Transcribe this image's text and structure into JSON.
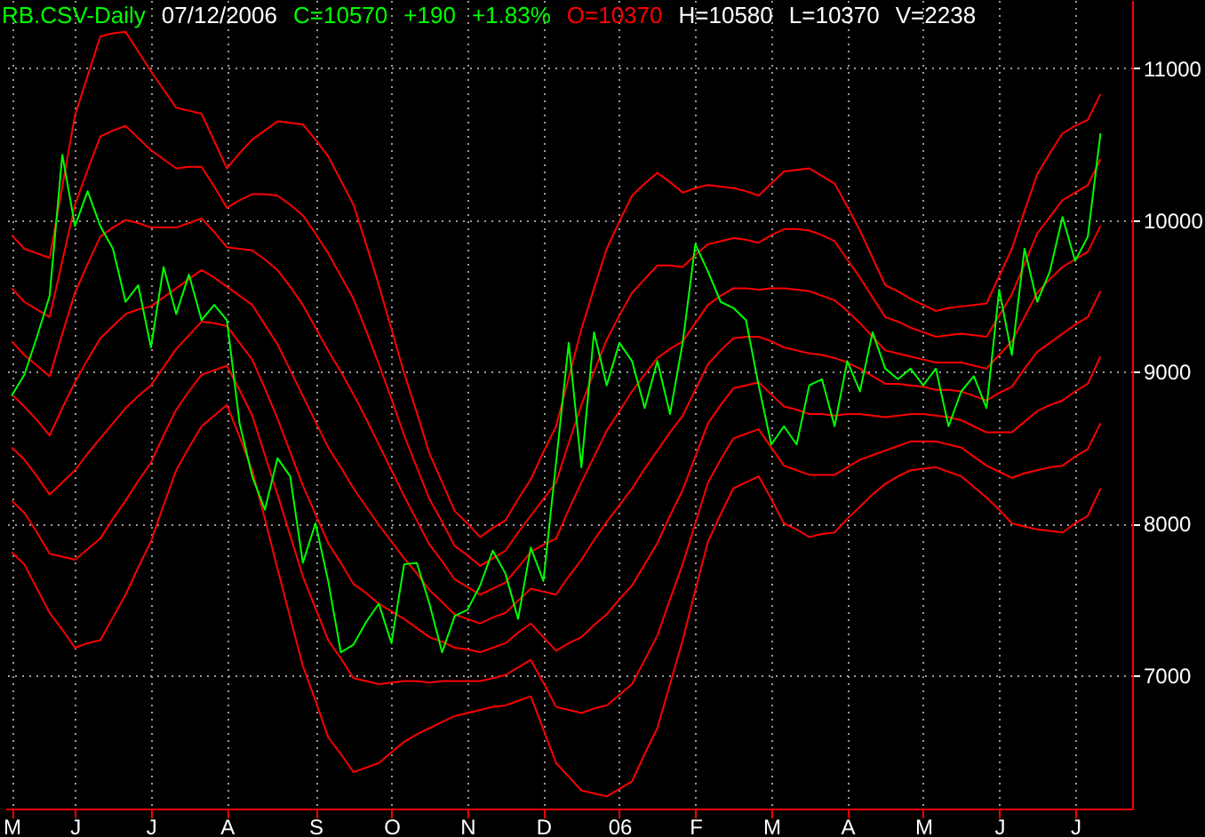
{
  "chart_data": {
    "type": "line",
    "title": "RB.CSV-Daily",
    "annotations": [
      "07/12/2006",
      "C=10570",
      "+190",
      "+1.83%",
      "O=10370",
      "H=10580",
      "L=10370",
      "V=2238"
    ],
    "categories": [
      "M",
      null,
      null,
      null,
      null,
      "J",
      null,
      null,
      null,
      null,
      null,
      "J",
      null,
      null,
      null,
      null,
      null,
      "A",
      null,
      null,
      null,
      null,
      null,
      null,
      "S",
      null,
      null,
      null,
      null,
      null,
      "O",
      null,
      null,
      null,
      null,
      null,
      "N",
      null,
      null,
      null,
      null,
      null,
      "D",
      null,
      null,
      null,
      null,
      null,
      "06",
      null,
      null,
      null,
      null,
      null,
      "F",
      null,
      null,
      null,
      null,
      null,
      "M",
      null,
      null,
      null,
      null,
      null,
      "A",
      null,
      null,
      null,
      null,
      null,
      "M",
      null,
      null,
      null,
      null,
      null,
      "J",
      null,
      null,
      null,
      null,
      null,
      "J",
      null,
      null,
      null,
      null
    ],
    "series": [
      {
        "color": "#ff0000",
        "values": [
          9900,
          9810,
          9780,
          9750,
          10220,
          10690,
          10950,
          11210,
          11230,
          11240,
          11110,
          10980,
          10860,
          10740,
          10720,
          10700,
          10520,
          10340,
          10440,
          10530,
          10590,
          10650,
          10640,
          10630,
          10530,
          10420,
          10260,
          10100,
          9840,
          9570,
          9280,
          8990,
          8730,
          8460,
          8270,
          8080,
          8000,
          7910,
          7970,
          8020,
          8160,
          8290,
          8470,
          8640,
          8960,
          9280,
          9550,
          9810,
          9990,
          10160,
          10240,
          10310,
          10250,
          10180,
          10210,
          10230,
          10220,
          10210,
          10190,
          10160,
          10240,
          10320,
          10330,
          10340,
          10290,
          10240,
          10090,
          9930,
          9750,
          9570,
          9530,
          9480,
          9440,
          9400,
          9420,
          9430,
          9440,
          9450,
          9630,
          9810,
          10060,
          10300,
          10440,
          10570,
          10620,
          10660,
          10830,
          null,
          null
        ]
      },
      {
        "color": "#ff0000",
        "values": [
          9550,
          9460,
          9410,
          9360,
          9730,
          10100,
          10330,
          10550,
          10590,
          10620,
          10540,
          10460,
          10400,
          10340,
          10350,
          10350,
          10220,
          10080,
          10130,
          10170,
          10170,
          10160,
          10100,
          10030,
          9910,
          9780,
          9630,
          9480,
          9270,
          9050,
          8820,
          8580,
          8370,
          8160,
          8010,
          7850,
          7790,
          7720,
          7770,
          7820,
          7940,
          8050,
          8160,
          8270,
          8530,
          8780,
          9000,
          9210,
          9370,
          9520,
          9610,
          9700,
          9700,
          9690,
          9770,
          9840,
          9860,
          9880,
          9870,
          9850,
          9900,
          9940,
          9940,
          9930,
          9900,
          9860,
          9740,
          9620,
          9490,
          9360,
          9330,
          9290,
          9260,
          9230,
          9240,
          9250,
          9240,
          9230,
          9370,
          9510,
          9710,
          9910,
          10020,
          10130,
          10180,
          10230,
          10400,
          null,
          null
        ]
      },
      {
        "color": "#ff0000",
        "values": [
          9200,
          9110,
          9040,
          8970,
          9250,
          9520,
          9710,
          9890,
          9950,
          10000,
          9980,
          9950,
          9950,
          9950,
          9980,
          10010,
          9920,
          9820,
          9810,
          9800,
          9740,
          9670,
          9560,
          9440,
          9290,
          9140,
          9000,
          8850,
          8690,
          8520,
          8350,
          8180,
          8020,
          7860,
          7750,
          7630,
          7580,
          7530,
          7570,
          7610,
          7710,
          7810,
          7860,
          7900,
          8090,
          8270,
          8440,
          8610,
          8740,
          8870,
          8980,
          9090,
          9150,
          9200,
          9320,
          9440,
          9500,
          9550,
          9550,
          9540,
          9550,
          9550,
          9540,
          9530,
          9500,
          9470,
          9400,
          9320,
          9230,
          9140,
          9120,
          9100,
          9080,
          9060,
          9060,
          9060,
          9040,
          9020,
          9110,
          9200,
          9360,
          9520,
          9610,
          9690,
          9740,
          9790,
          9960,
          null,
          null
        ]
      },
      {
        "color": "#ff0000",
        "values": [
          8850,
          8770,
          8680,
          8580,
          8760,
          8930,
          9080,
          9220,
          9300,
          9380,
          9410,
          9430,
          9490,
          9550,
          9610,
          9670,
          9620,
          9560,
          9500,
          9440,
          9310,
          9180,
          9010,
          8840,
          8670,
          8500,
          8370,
          8230,
          8110,
          7990,
          7880,
          7770,
          7670,
          7560,
          7480,
          7400,
          7370,
          7340,
          7380,
          7410,
          7490,
          7570,
          7550,
          7530,
          7650,
          7760,
          7890,
          8010,
          8120,
          8230,
          8360,
          8480,
          8600,
          8710,
          8880,
          9050,
          9140,
          9220,
          9230,
          9230,
          9200,
          9160,
          9140,
          9120,
          9110,
          9090,
          9060,
          9020,
          8970,
          8920,
          8920,
          8910,
          8900,
          8880,
          8880,
          8870,
          8840,
          8810,
          8860,
          8900,
          9020,
          9130,
          9190,
          9250,
          9310,
          9360,
          9530,
          null,
          null
        ]
      },
      {
        "color": "#ff0000",
        "values": [
          8500,
          8420,
          8310,
          8190,
          8270,
          8350,
          8460,
          8560,
          8660,
          8760,
          8840,
          8910,
          9030,
          9150,
          9240,
          9330,
          9320,
          9300,
          9190,
          9080,
          8890,
          8690,
          8470,
          8250,
          8060,
          7870,
          7740,
          7600,
          7540,
          7470,
          7420,
          7370,
          7310,
          7250,
          7220,
          7180,
          7170,
          7150,
          7180,
          7210,
          7280,
          7340,
          7250,
          7160,
          7210,
          7250,
          7330,
          7400,
          7500,
          7590,
          7730,
          7870,
          8050,
          8220,
          8440,
          8660,
          8780,
          8890,
          8910,
          8930,
          8850,
          8770,
          8750,
          8720,
          8720,
          8710,
          8720,
          8720,
          8710,
          8700,
          8710,
          8720,
          8720,
          8710,
          8700,
          8680,
          8640,
          8600,
          8600,
          8600,
          8670,
          8740,
          8780,
          8810,
          8870,
          8920,
          9100,
          null,
          null
        ]
      },
      {
        "color": "#ff0000",
        "values": [
          8150,
          8070,
          7940,
          7800,
          7780,
          7760,
          7830,
          7900,
          8030,
          8150,
          8280,
          8400,
          8580,
          8750,
          8870,
          8980,
          9010,
          9040,
          8880,
          8710,
          8450,
          8190,
          7920,
          7650,
          7440,
          7230,
          7110,
          6980,
          6960,
          6940,
          6950,
          6960,
          6960,
          6950,
          6960,
          6960,
          6960,
          6960,
          6980,
          7000,
          7050,
          7100,
          6950,
          6790,
          6770,
          6750,
          6780,
          6800,
          6870,
          6940,
          7100,
          7260,
          7500,
          7730,
          8000,
          8270,
          8420,
          8560,
          8590,
          8620,
          8500,
          8380,
          8350,
          8320,
          8320,
          8320,
          8370,
          8420,
          8450,
          8480,
          8510,
          8540,
          8540,
          8540,
          8520,
          8500,
          8440,
          8380,
          8340,
          8300,
          8330,
          8350,
          8370,
          8380,
          8440,
          8490,
          8660,
          null,
          null
        ]
      },
      {
        "color": "#ff0000",
        "values": [
          7810,
          7730,
          7570,
          7410,
          7300,
          7180,
          7210,
          7230,
          7380,
          7530,
          7710,
          7880,
          8120,
          8350,
          8500,
          8640,
          8710,
          8780,
          8570,
          8350,
          8030,
          7700,
          7380,
          7060,
          6830,
          6590,
          6480,
          6360,
          6390,
          6420,
          6490,
          6560,
          6610,
          6650,
          6690,
          6730,
          6750,
          6770,
          6790,
          6800,
          6830,
          6860,
          6640,
          6420,
          6330,
          6240,
          6220,
          6200,
          6250,
          6300,
          6480,
          6650,
          6940,
          7230,
          7560,
          7880,
          8060,
          8230,
          8270,
          8310,
          8160,
          8000,
          7960,
          7910,
          7930,
          7940,
          8030,
          8110,
          8190,
          8260,
          8310,
          8350,
          8360,
          8370,
          8340,
          8310,
          8240,
          8170,
          8090,
          8000,
          7980,
          7960,
          7950,
          7940,
          8000,
          8050,
          8230,
          null,
          null
        ]
      },
      {
        "color": "#00ff00",
        "values": [
          8840,
          8980,
          9230,
          9500,
          10430,
          9960,
          10190,
          9960,
          9810,
          9460,
          9570,
          9160,
          9690,
          9380,
          9640,
          9340,
          9440,
          9340,
          8660,
          8310,
          8090,
          8430,
          8310,
          7740,
          8000,
          7620,
          7150,
          7200,
          7350,
          7470,
          7210,
          7730,
          7740,
          7470,
          7150,
          7390,
          7430,
          7590,
          7820,
          7670,
          7370,
          7840,
          7620,
          8400,
          9190,
          8370,
          9260,
          8910,
          9190,
          9070,
          8760,
          9070,
          8720,
          9190,
          9840,
          9660,
          9460,
          9420,
          9340,
          8910,
          8520,
          8640,
          8520,
          8910,
          8950,
          8640,
          9070,
          8870,
          9260,
          9020,
          8950,
          9020,
          8910,
          9020,
          8640,
          8870,
          8970,
          8760,
          9540,
          9110,
          9810,
          9460,
          9660,
          10020,
          9730,
          9890,
          10570,
          null,
          null
        ]
      }
    ],
    "ylim": [
      6120,
      11450
    ],
    "yticks": [
      7000,
      8000,
      9000,
      10000,
      11000
    ],
    "grid": true
  }
}
